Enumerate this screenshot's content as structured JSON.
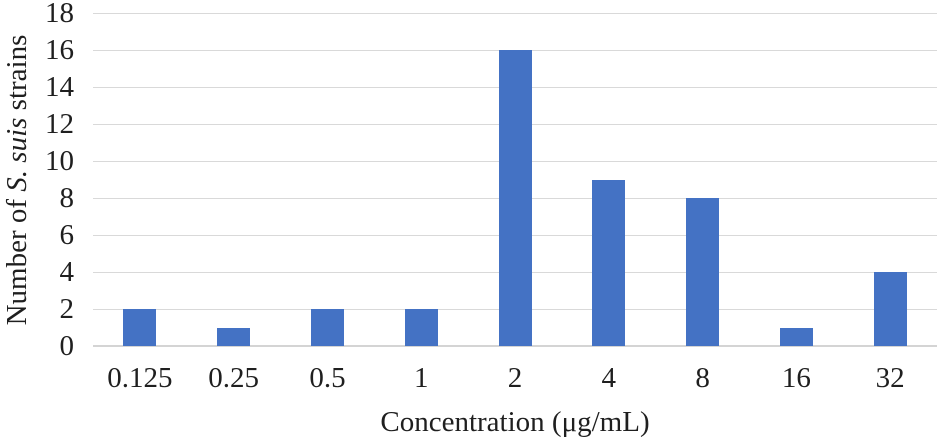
{
  "chart_data": {
    "type": "bar",
    "categories": [
      "0.125",
      "0.25",
      "0.5",
      "1",
      "2",
      "4",
      "8",
      "16",
      "32"
    ],
    "values": [
      2,
      1,
      2,
      2,
      16,
      9,
      8,
      1,
      4
    ],
    "title": "",
    "xlabel": "Concentration (μg/mL)",
    "ylabel": "Number of S. suis strains",
    "ylabel_parts": {
      "prefix": "Number of ",
      "italic": "S. suis",
      "suffix": " strains"
    },
    "ylim": [
      0,
      18
    ],
    "ytick_step": 2,
    "ytick_labels": [
      "0",
      "2",
      "4",
      "6",
      "8",
      "10",
      "12",
      "14",
      "16",
      "18"
    ],
    "grid": "horizontal",
    "legend_position": "none",
    "colors": {
      "bar": "#4472C4",
      "gridline": "#D9D9D9",
      "axis_line": "#D4D4D4",
      "text": "#1F1F1F",
      "background": "#FFFFFF"
    }
  }
}
